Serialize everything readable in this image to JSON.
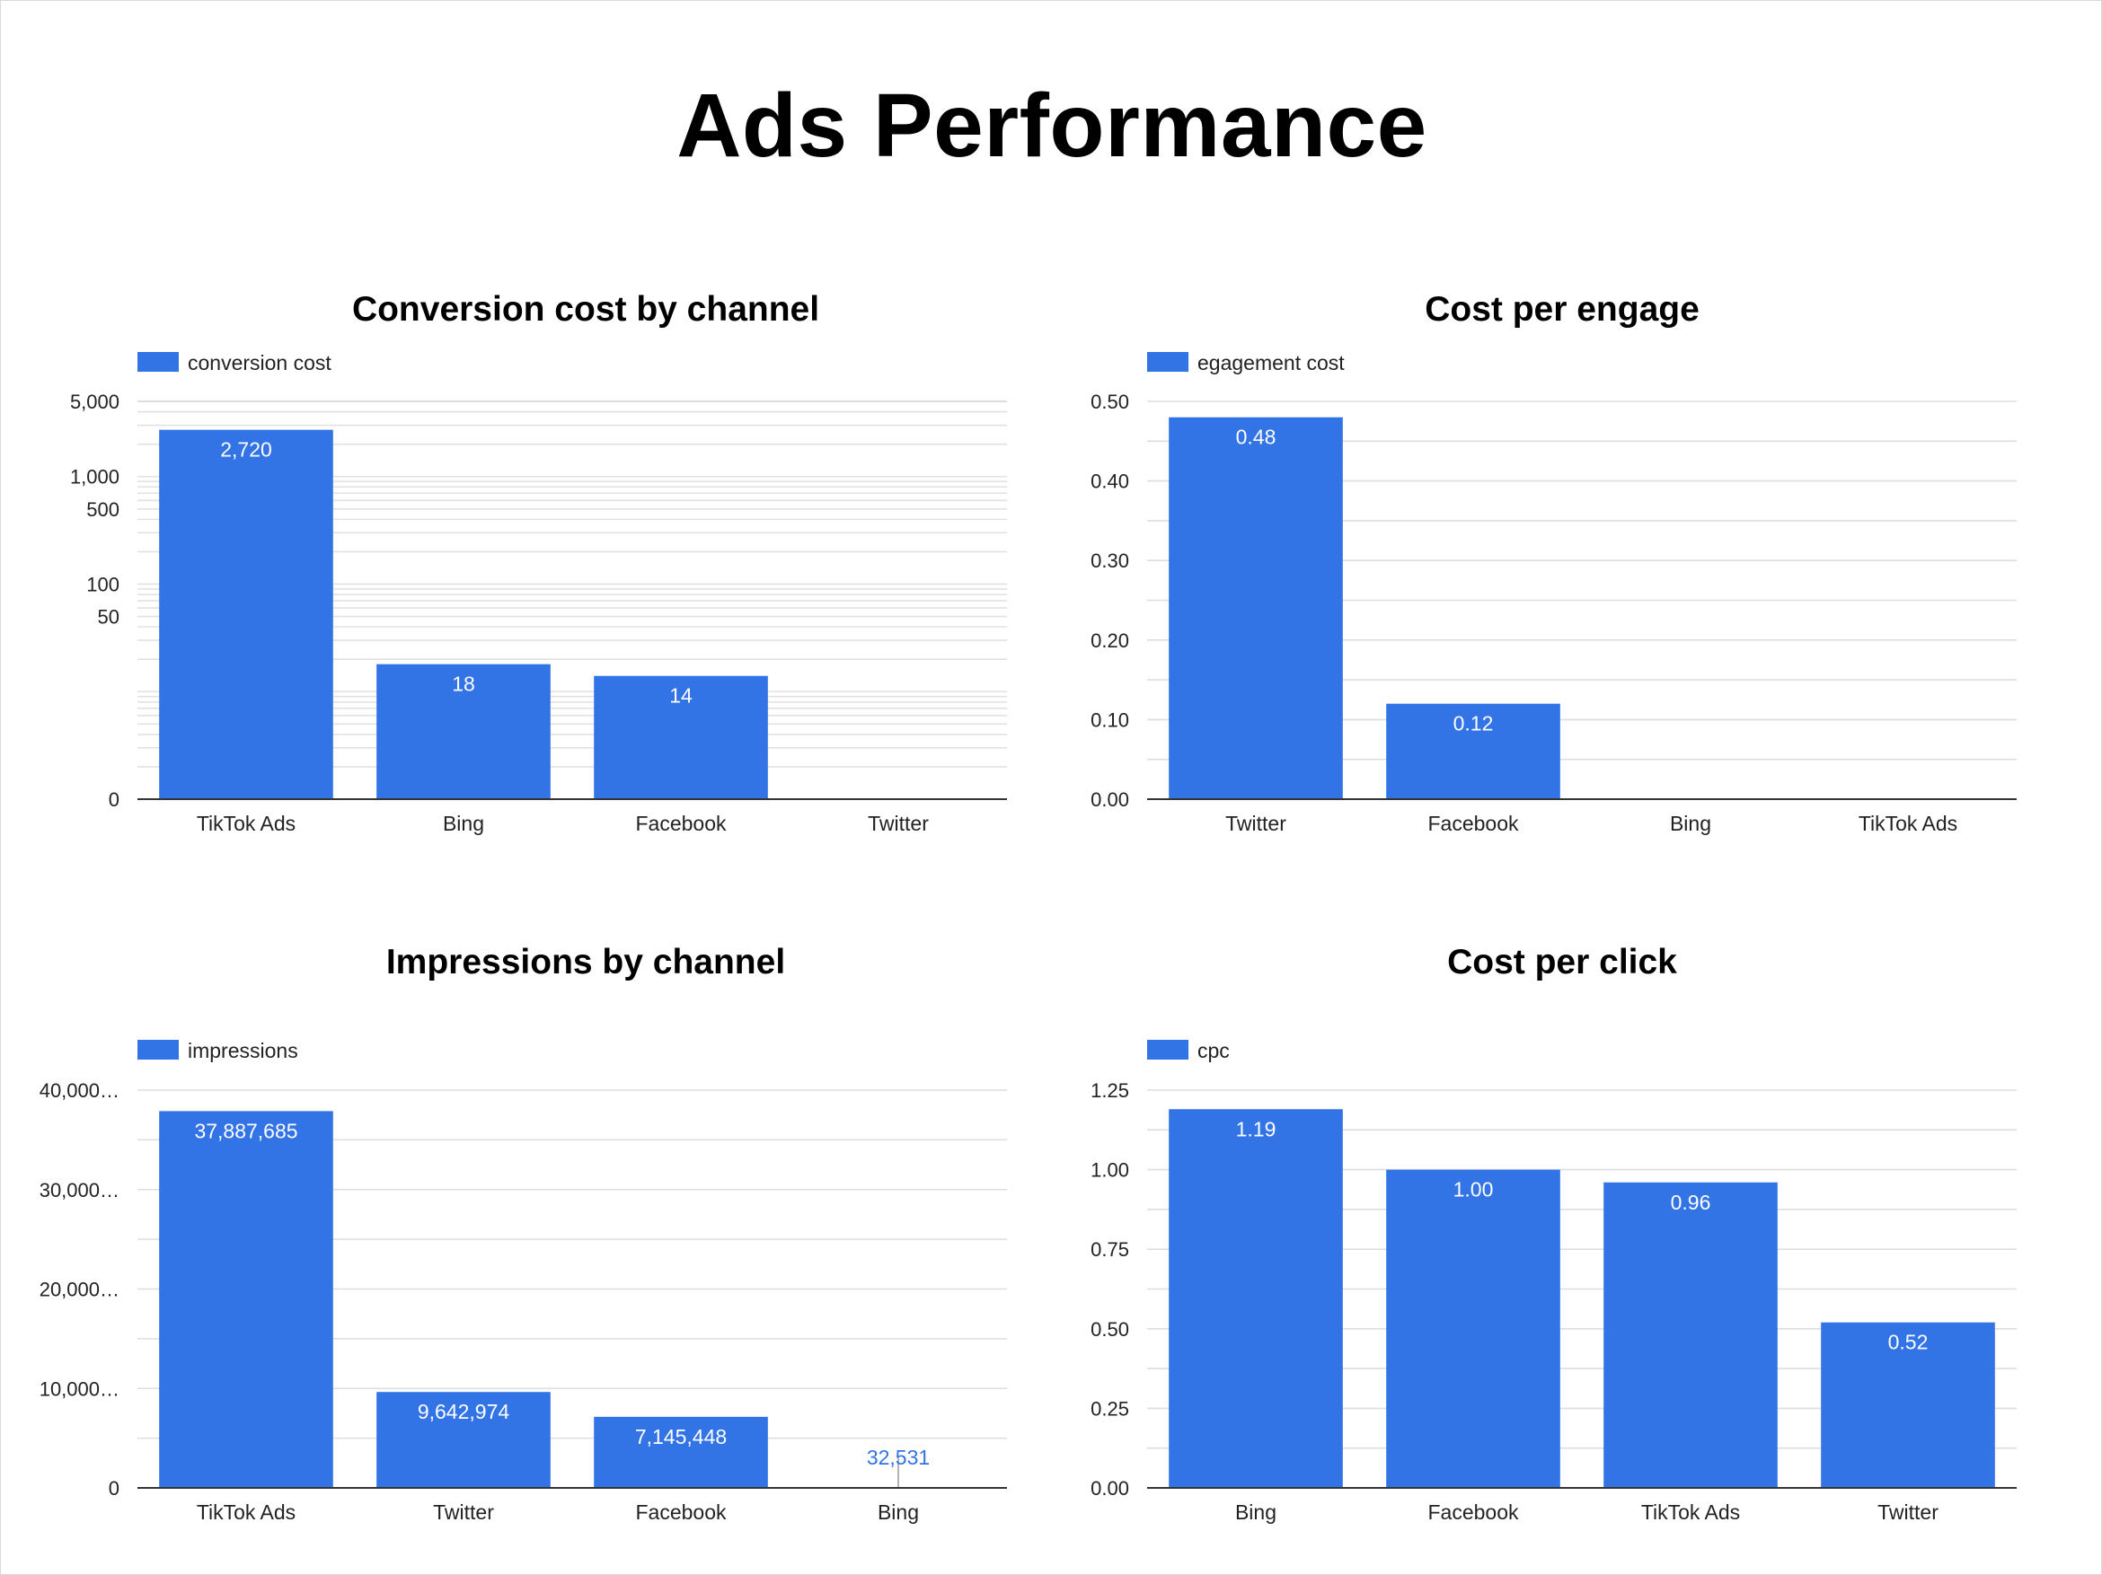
{
  "page": {
    "title": "Ads Performance"
  },
  "chart_data": [
    {
      "type": "bar",
      "title": "Conversion cost by channel",
      "legend": "conversion cost",
      "legend_position": "top-left",
      "categories": [
        "TikTok Ads",
        "Bing",
        "Facebook",
        "Twitter"
      ],
      "values": [
        2720,
        18,
        14,
        0
      ],
      "value_labels": [
        "2,720",
        "18",
        "14",
        ""
      ],
      "y_scale": "log",
      "ylim": [
        0,
        5000
      ],
      "y_ticks": [
        0,
        50,
        100,
        500,
        1000,
        5000
      ],
      "y_tick_labels": [
        "0",
        "50",
        "100",
        "500",
        "1,000",
        "5,000"
      ],
      "grid": true,
      "color": "#3273e6"
    },
    {
      "type": "bar",
      "title": "Cost per engage",
      "legend": "egagement cost",
      "legend_position": "top-left",
      "categories": [
        "Twitter",
        "Facebook",
        "Bing",
        "TikTok Ads"
      ],
      "values": [
        0.48,
        0.12,
        0,
        0
      ],
      "value_labels": [
        "0.48",
        "0.12",
        "",
        ""
      ],
      "y_scale": "linear",
      "ylim": [
        0,
        0.5
      ],
      "y_ticks": [
        0,
        0.1,
        0.2,
        0.3,
        0.4,
        0.5
      ],
      "y_tick_labels": [
        "0.00",
        "0.10",
        "0.20",
        "0.30",
        "0.40",
        "0.50"
      ],
      "grid": true,
      "color": "#3273e6"
    },
    {
      "type": "bar",
      "title": "Impressions by channel",
      "legend": "impressions",
      "legend_position": "top-left",
      "categories": [
        "TikTok Ads",
        "Twitter",
        "Facebook",
        "Bing"
      ],
      "values": [
        37887685,
        9642974,
        7145448,
        32531
      ],
      "value_labels": [
        "37,887,685",
        "9,642,974",
        "7,145,448",
        "32,531"
      ],
      "y_scale": "linear",
      "ylim": [
        0,
        40000000
      ],
      "y_ticks": [
        0,
        10000000,
        20000000,
        30000000,
        40000000
      ],
      "y_tick_labels": [
        "0",
        "10,000…",
        "20,000…",
        "30,000…",
        "40,000…"
      ],
      "grid": true,
      "color": "#3273e6"
    },
    {
      "type": "bar",
      "title": "Cost per click",
      "legend": "cpc",
      "legend_position": "top-left",
      "categories": [
        "Bing",
        "Facebook",
        "TikTok Ads",
        "Twitter"
      ],
      "values": [
        1.19,
        1.0,
        0.96,
        0.52
      ],
      "value_labels": [
        "1.19",
        "1.00",
        "0.96",
        "0.52"
      ],
      "y_scale": "linear",
      "ylim": [
        0,
        1.25
      ],
      "y_ticks": [
        0,
        0.25,
        0.5,
        0.75,
        1.0,
        1.25
      ],
      "y_tick_labels": [
        "0.00",
        "0.25",
        "0.50",
        "0.75",
        "1.00",
        "1.25"
      ],
      "grid": true,
      "color": "#3273e6"
    }
  ]
}
